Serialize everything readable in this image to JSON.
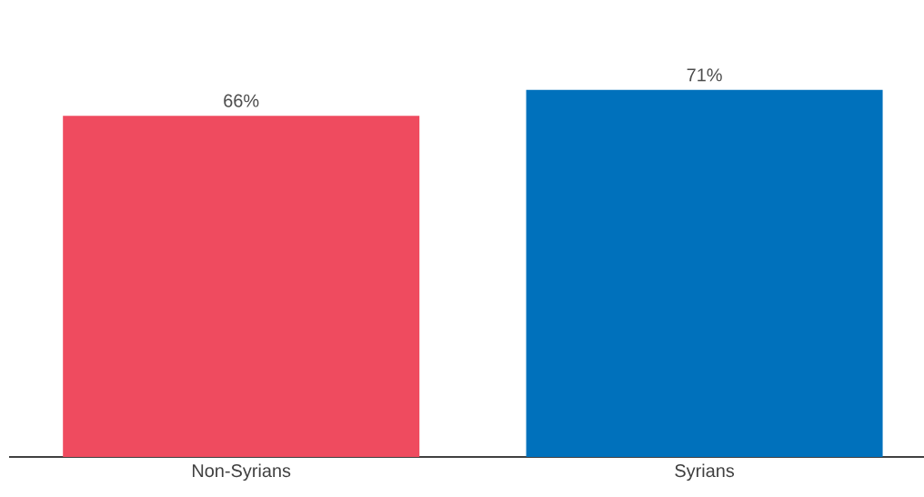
{
  "chart_data": {
    "type": "bar",
    "categories": [
      "Non-Syrians",
      "Syrians"
    ],
    "values": [
      66,
      71
    ],
    "colors": [
      "#ef4b5f",
      "#0071bc"
    ],
    "value_labels": [
      "66%",
      "71%"
    ]
  }
}
